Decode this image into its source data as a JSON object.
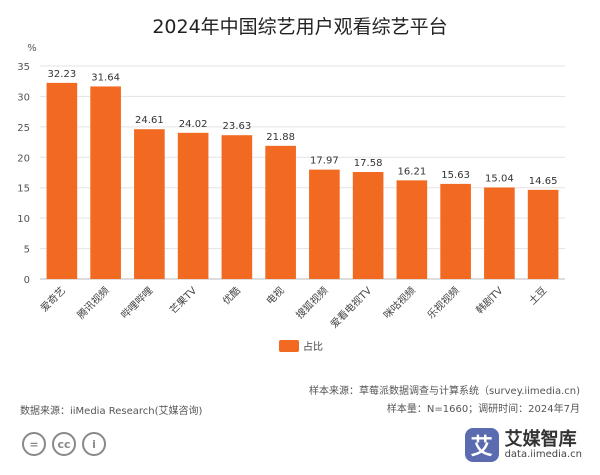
{
  "chart_data": {
    "type": "bar",
    "title": "2024年中国综艺用户观看综艺平台",
    "ylabel": "%",
    "ylim": [
      0,
      35
    ],
    "yticks": [
      0,
      5,
      10,
      15,
      20,
      25,
      30,
      35
    ],
    "grid": true,
    "legend_position": "bottom",
    "categories": [
      "爱奇艺",
      "腾讯视频",
      "哔哩哔哩",
      "芒果TV",
      "优酷",
      "电视",
      "搜狐视频",
      "爱看电视TV",
      "咪咕视频",
      "乐视视频",
      "韩剧TV",
      "土豆"
    ],
    "series": [
      {
        "name": "占比",
        "values": [
          32.23,
          31.64,
          24.61,
          24.02,
          23.63,
          21.88,
          17.97,
          17.58,
          16.21,
          15.63,
          15.04,
          14.65
        ]
      }
    ],
    "value_labels": [
      "32.23",
      "31.64",
      "24.61",
      "24.02",
      "23.63",
      "21.88",
      "17.97",
      "17.58",
      "16.21",
      "15.63",
      "15.04",
      "14.65"
    ],
    "bar_color": "#f26a21"
  },
  "footer": {
    "source": "数据来源：iiMedia Research(艾媒咨询)",
    "sample_source": "样本来源：草莓派数据调查与计算系统（survey.iimedia.cn)",
    "sample_info": "样本量：N=1660；调研时间：2024年7月"
  },
  "license_icons": [
    "=",
    "cc",
    "i"
  ],
  "brand": {
    "mark": "艾",
    "name": "艾媒智库",
    "url": "data.iimedia.cn",
    "color": "#5b6bb0"
  }
}
